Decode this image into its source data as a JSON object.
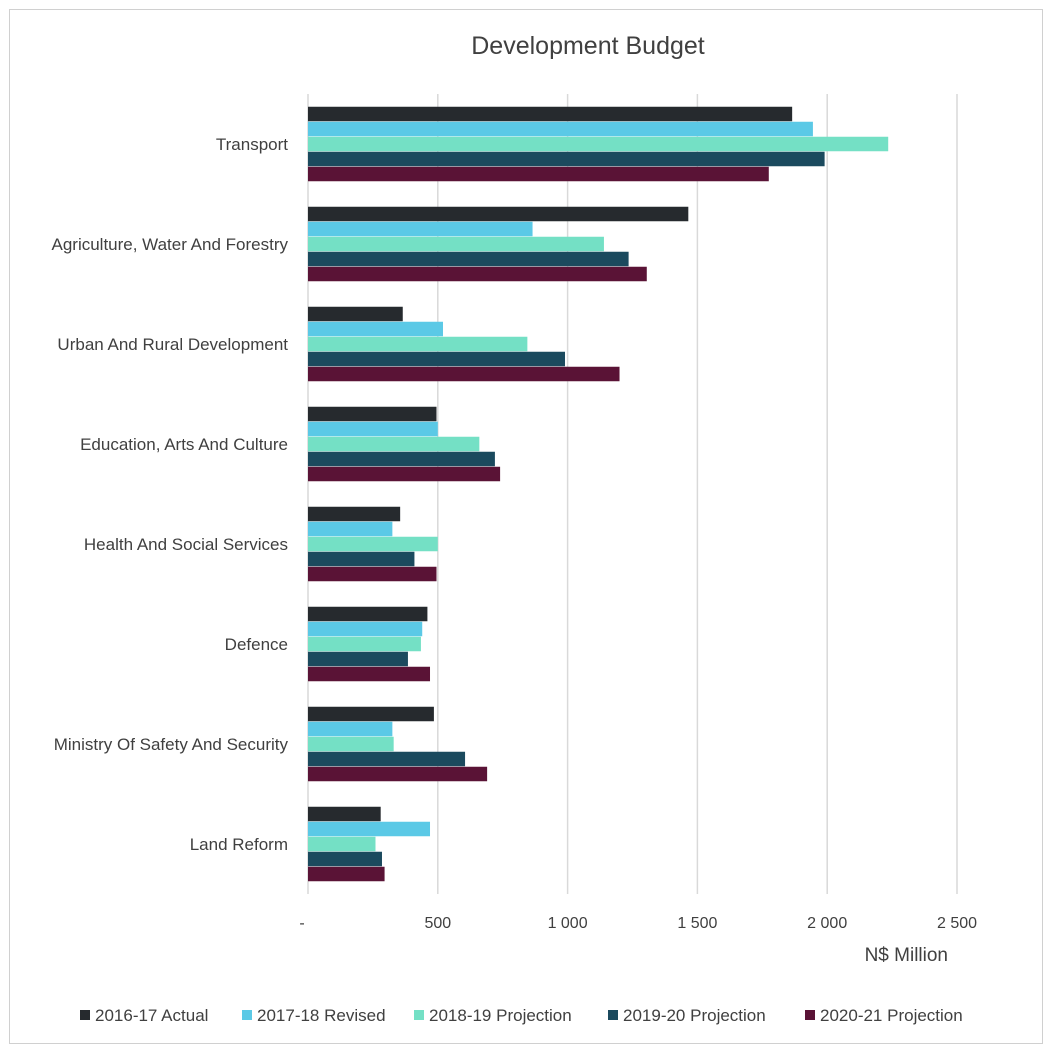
{
  "chart_data": {
    "type": "bar",
    "orientation": "horizontal",
    "title": "Development Budget",
    "xlabel": "N$ Million",
    "xlim": [
      0,
      2500
    ],
    "x_ticks": [
      {
        "value": 0,
        "label": "-"
      },
      {
        "value": 500,
        "label": "500"
      },
      {
        "value": 1000,
        "label": "1 000"
      },
      {
        "value": 1500,
        "label": "1 500"
      },
      {
        "value": 2000,
        "label": "2 000"
      },
      {
        "value": 2500,
        "label": "2 500"
      }
    ],
    "grid": true,
    "legend_position": "bottom",
    "categories": [
      "Transport",
      "Agriculture, Water And Forestry",
      "Urban And Rural Development",
      "Education, Arts And Culture",
      "Health And Social Services",
      "Defence",
      "Ministry Of Safety And Security",
      "Land Reform"
    ],
    "series": [
      {
        "name": "2016-17 Actual",
        "color": "#262a2e",
        "values": [
          1865,
          1465,
          365,
          495,
          355,
          460,
          485,
          280
        ]
      },
      {
        "name": "2017-18 Revised",
        "color": "#5bc9e6",
        "values": [
          1945,
          865,
          520,
          500,
          325,
          440,
          325,
          470
        ]
      },
      {
        "name": "2018-19 Projection",
        "color": "#74e0c5",
        "values": [
          2235,
          1140,
          845,
          660,
          500,
          435,
          330,
          260
        ]
      },
      {
        "name": "2019-20 Projection",
        "color": "#1b4a5e",
        "values": [
          1990,
          1235,
          990,
          720,
          410,
          385,
          605,
          285
        ]
      },
      {
        "name": "2020-21 Projection",
        "color": "#5a1336",
        "values": [
          1775,
          1305,
          1200,
          740,
          495,
          470,
          690,
          295
        ]
      }
    ]
  }
}
